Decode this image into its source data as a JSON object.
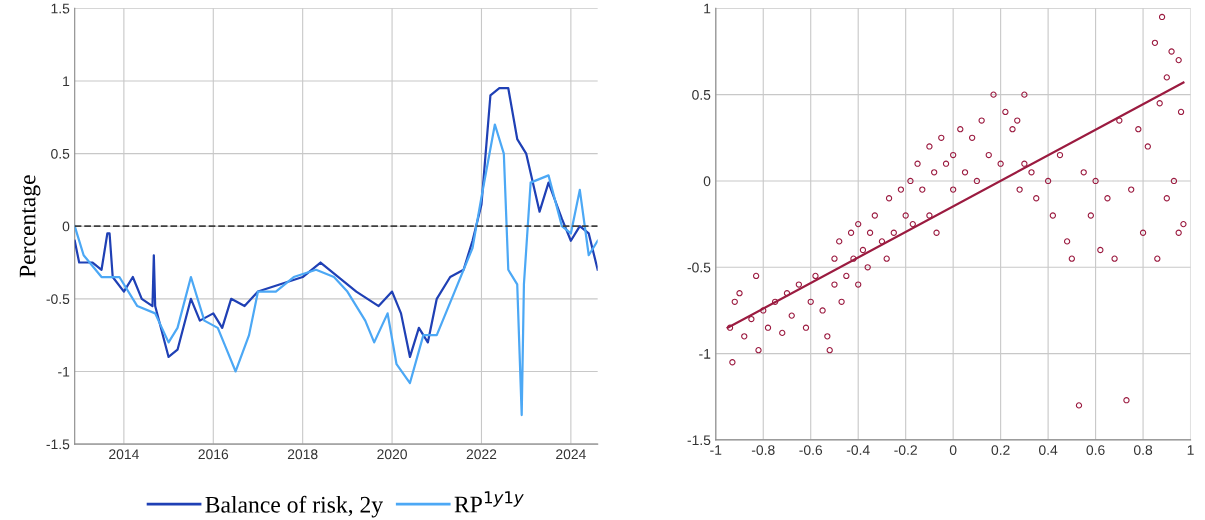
{
  "chart_data": [
    {
      "type": "line",
      "ylabel": "Percentage",
      "xlim": [
        2012.9,
        2024.6
      ],
      "xticks": [
        2014,
        2016,
        2018,
        2020,
        2022,
        2024
      ],
      "ylim": [
        -1.5,
        1.5
      ],
      "yticks": [
        -1.5,
        -1,
        -0.5,
        0,
        0.5,
        1,
        1.5
      ],
      "grid": true,
      "legend": "bottom",
      "line_style": "solid",
      "marker": "none",
      "ref_lines": [
        {
          "axis": "y",
          "value": 0,
          "color": "#404040",
          "line_style": "dashed"
        }
      ],
      "series": [
        {
          "name": "Balance of risk, 2y",
          "color": "#1f40b5",
          "x": [
            2012.9,
            2013.0,
            2013.3,
            2013.5,
            2013.63,
            2013.68,
            2013.75,
            2014.0,
            2014.2,
            2014.4,
            2014.64,
            2014.67,
            2014.7,
            2015.0,
            2015.2,
            2015.5,
            2015.7,
            2016.0,
            2016.2,
            2016.4,
            2016.7,
            2017.0,
            2017.5,
            2018.0,
            2018.4,
            2018.8,
            2019.2,
            2019.7,
            2020.0,
            2020.2,
            2020.4,
            2020.6,
            2020.8,
            2021.0,
            2021.3,
            2021.6,
            2021.8,
            2022.0,
            2022.2,
            2022.4,
            2022.6,
            2022.8,
            2023.0,
            2023.3,
            2023.5,
            2023.8,
            2024.0,
            2024.2,
            2024.4,
            2024.6
          ],
          "values": [
            -0.1,
            -0.25,
            -0.25,
            -0.3,
            -0.05,
            -0.05,
            -0.35,
            -0.45,
            -0.35,
            -0.5,
            -0.55,
            -0.2,
            -0.55,
            -0.9,
            -0.85,
            -0.5,
            -0.65,
            -0.6,
            -0.7,
            -0.5,
            -0.55,
            -0.45,
            -0.4,
            -0.35,
            -0.25,
            -0.35,
            -0.45,
            -0.55,
            -0.45,
            -0.6,
            -0.9,
            -0.7,
            -0.8,
            -0.5,
            -0.35,
            -0.3,
            -0.1,
            0.15,
            0.9,
            0.95,
            0.95,
            0.6,
            0.5,
            0.1,
            0.3,
            0.05,
            -0.1,
            0.0,
            -0.05,
            -0.3
          ]
        },
        {
          "name": "RP$^{1y1y}$",
          "color": "#4ca8f5",
          "x": [
            2012.9,
            2013.1,
            2013.5,
            2013.9,
            2014.3,
            2014.7,
            2015.0,
            2015.2,
            2015.5,
            2015.8,
            2016.1,
            2016.3,
            2016.5,
            2016.8,
            2017.0,
            2017.4,
            2017.8,
            2018.3,
            2018.7,
            2019.0,
            2019.4,
            2019.6,
            2019.9,
            2020.1,
            2020.4,
            2020.7,
            2021.0,
            2021.4,
            2021.8,
            2022.0,
            2022.3,
            2022.5,
            2022.6,
            2022.8,
            2022.9,
            2022.95,
            2023.1,
            2023.5,
            2023.8,
            2024.0,
            2024.2,
            2024.4,
            2024.6
          ],
          "values": [
            0.0,
            -0.2,
            -0.35,
            -0.35,
            -0.55,
            -0.6,
            -0.8,
            -0.7,
            -0.35,
            -0.65,
            -0.7,
            -0.85,
            -1.0,
            -0.75,
            -0.45,
            -0.45,
            -0.35,
            -0.3,
            -0.35,
            -0.45,
            -0.65,
            -0.8,
            -0.6,
            -0.95,
            -1.08,
            -0.75,
            -0.75,
            -0.45,
            -0.15,
            0.2,
            0.7,
            0.5,
            -0.3,
            -0.4,
            -1.3,
            -0.4,
            0.3,
            0.35,
            0.0,
            -0.05,
            0.25,
            -0.2,
            -0.1
          ]
        }
      ]
    },
    {
      "type": "scatter",
      "xlim": [
        -1,
        1
      ],
      "xticks": [
        -1,
        -0.8,
        -0.6,
        -0.4,
        -0.2,
        0,
        0.2,
        0.4,
        0.6,
        0.8,
        1
      ],
      "ylim": [
        -1.5,
        1
      ],
      "yticks": [
        -1.5,
        -1,
        -0.5,
        0,
        0.5,
        1
      ],
      "grid": true,
      "series": [
        {
          "type": "scatter",
          "marker": "circle",
          "color": "#9b1b40",
          "x": [
            -0.94,
            -0.93,
            -0.92,
            -0.9,
            -0.88,
            -0.85,
            -0.83,
            -0.82,
            -0.8,
            -0.78,
            -0.75,
            -0.72,
            -0.7,
            -0.68,
            -0.65,
            -0.62,
            -0.6,
            -0.58,
            -0.55,
            -0.53,
            -0.52,
            -0.5,
            -0.5,
            -0.48,
            -0.47,
            -0.45,
            -0.43,
            -0.42,
            -0.4,
            -0.4,
            -0.38,
            -0.36,
            -0.35,
            -0.33,
            -0.3,
            -0.28,
            -0.27,
            -0.25,
            -0.22,
            -0.2,
            -0.18,
            -0.17,
            -0.15,
            -0.13,
            -0.1,
            -0.1,
            -0.08,
            -0.07,
            -0.05,
            -0.03,
            0,
            0,
            0.03,
            0.05,
            0.08,
            0.1,
            0.12,
            0.15,
            0.17,
            0.2,
            0.22,
            0.25,
            0.27,
            0.28,
            0.3,
            0.33,
            0.35,
            0.3,
            0.4,
            0.42,
            0.45,
            0.48,
            0.5,
            0.53,
            0.55,
            0.58,
            0.6,
            0.62,
            0.65,
            0.68,
            0.7,
            0.73,
            0.75,
            0.78,
            0.8,
            0.82,
            0.85,
            0.86,
            0.87,
            0.88,
            0.9,
            0.9,
            0.92,
            0.93,
            0.95,
            0.95,
            0.96,
            0.97
          ],
          "values": [
            -0.85,
            -1.05,
            -0.7,
            -0.65,
            -0.9,
            -0.8,
            -0.55,
            -0.98,
            -0.75,
            -0.85,
            -0.7,
            -0.88,
            -0.65,
            -0.78,
            -0.6,
            -0.85,
            -0.7,
            -0.55,
            -0.75,
            -0.9,
            -0.98,
            -0.6,
            -0.45,
            -0.35,
            -0.7,
            -0.55,
            -0.3,
            -0.45,
            -0.6,
            -0.25,
            -0.4,
            -0.5,
            -0.3,
            -0.2,
            -0.35,
            -0.45,
            -0.1,
            -0.3,
            -0.05,
            -0.2,
            0.0,
            -0.25,
            0.1,
            -0.05,
            0.2,
            -0.2,
            0.05,
            -0.3,
            0.25,
            0.1,
            0.15,
            -0.05,
            0.3,
            0.05,
            0.25,
            0.0,
            0.35,
            0.15,
            0.5,
            0.1,
            0.4,
            0.3,
            0.35,
            -0.05,
            0.1,
            0.05,
            -0.1,
            0.5,
            0.0,
            -0.2,
            0.15,
            -0.35,
            -0.45,
            -1.3,
            0.05,
            -0.2,
            0.0,
            -0.4,
            -0.1,
            -0.45,
            0.35,
            -1.27,
            -0.05,
            0.3,
            -0.3,
            0.2,
            0.8,
            -0.45,
            0.45,
            0.95,
            0.6,
            -0.1,
            0.75,
            0.0,
            0.7,
            -0.3,
            0.4,
            -0.25
          ]
        },
        {
          "type": "line",
          "marker": "none",
          "color": "#9b1b40",
          "x": [
            -0.95,
            0.97
          ],
          "values": [
            -0.85,
            0.57
          ]
        }
      ]
    }
  ]
}
